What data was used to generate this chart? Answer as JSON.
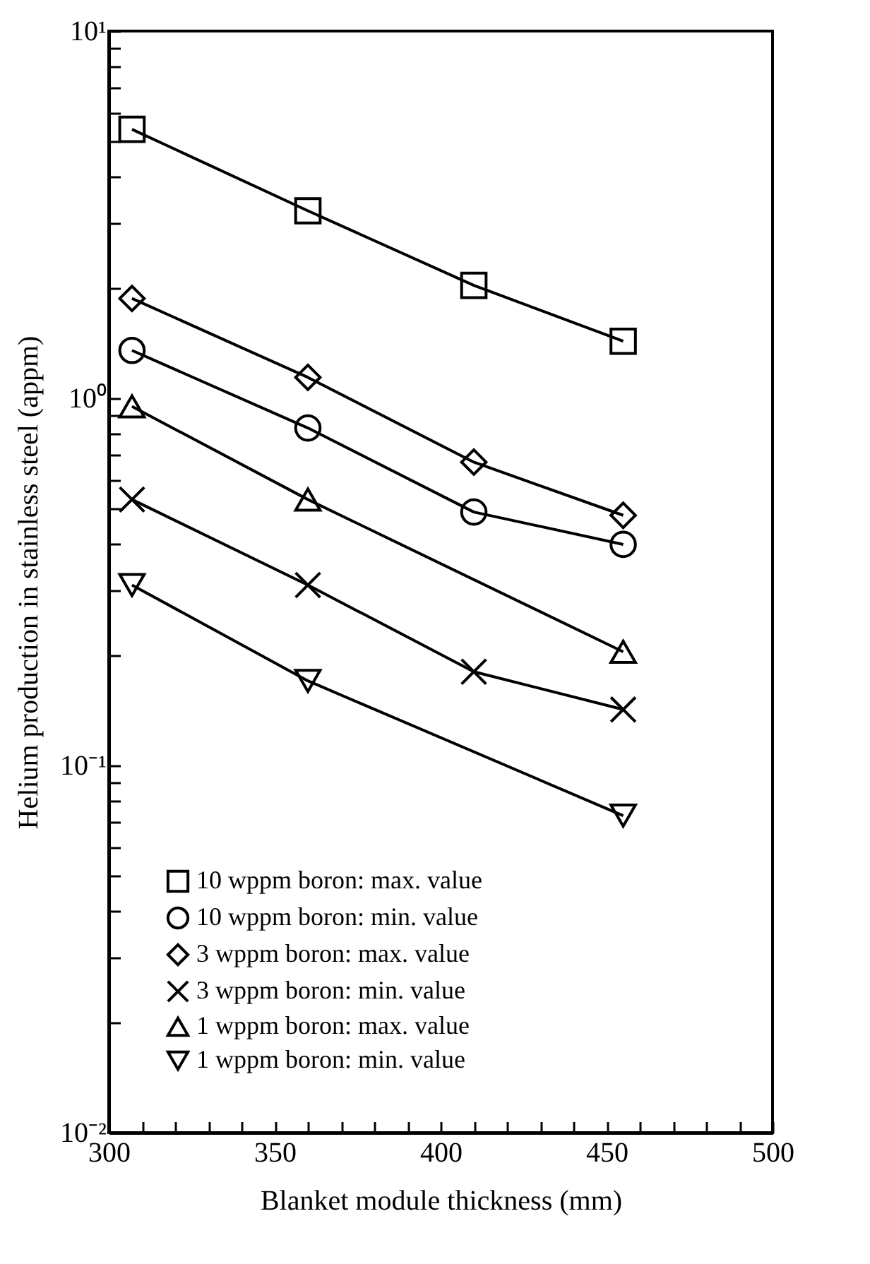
{
  "chart_data": {
    "type": "line",
    "xlabel": "Blanket module thickness (mm)",
    "ylabel": "Helium production in stainless steel (appm)",
    "x": [
      307,
      360,
      410,
      455
    ],
    "series": [
      {
        "name": "10 wppm boron: max. value",
        "color": "#000000",
        "marker": "square",
        "values": [
          5.4,
          3.24,
          2.03,
          1.43
        ]
      },
      {
        "name": "10 wppm boron: min. value",
        "color": "#000000",
        "marker": "circle",
        "values": [
          1.35,
          0.83,
          0.49,
          0.4
        ]
      },
      {
        "name": "3 wppm boron: max. value",
        "color": "#000000",
        "marker": "diamond",
        "values": [
          1.87,
          1.14,
          0.67,
          0.48
        ]
      },
      {
        "name": "3 wppm boron: min. value",
        "color": "#000000",
        "marker": "cross",
        "values": [
          0.53,
          0.31,
          0.18,
          0.142
        ]
      },
      {
        "name": "1 wppm boron: max. value",
        "color": "#000000",
        "marker": "triangle",
        "values": [
          0.95,
          0.53,
          null,
          0.204
        ]
      },
      {
        "name": "1 wppm boron: min. value",
        "color": "#000000",
        "marker": "triangle-down",
        "values": [
          0.31,
          0.17,
          null,
          0.073
        ]
      }
    ],
    "log": "y",
    "xlim": [
      300,
      500
    ],
    "ylim": [
      0.01,
      10
    ],
    "xticks": [
      300,
      {
        "value": 310,
        "label": null
      },
      {
        "value": 320,
        "label": null
      },
      {
        "value": 330,
        "label": null
      },
      {
        "value": 340,
        "label": null
      },
      350,
      {
        "value": 360,
        "label": null
      },
      {
        "value": 370,
        "label": null
      },
      {
        "value": 380,
        "label": null
      },
      {
        "value": 390,
        "label": null
      },
      400,
      {
        "value": 410,
        "label": null
      },
      {
        "value": 420,
        "label": null
      },
      {
        "value": 430,
        "label": null
      },
      {
        "value": 440,
        "label": null
      },
      450,
      {
        "value": 460,
        "label": null
      },
      {
        "value": 470,
        "label": null
      },
      {
        "value": 480,
        "label": null
      },
      {
        "value": 490,
        "label": null
      },
      500
    ],
    "yticks": [
      {
        "value": 0.01,
        "label": "10⁻²"
      },
      {
        "value": 0.02,
        "label": null
      },
      {
        "value": 0.03,
        "label": null
      },
      {
        "value": 0.04,
        "label": null
      },
      {
        "value": 0.05,
        "label": null
      },
      {
        "value": 0.06,
        "label": null
      },
      {
        "value": 0.07,
        "label": null
      },
      {
        "value": 0.08,
        "label": null
      },
      {
        "value": 0.09,
        "label": null
      },
      {
        "value": 0.1,
        "label": "10⁻¹"
      },
      {
        "value": 0.2,
        "label": null
      },
      {
        "value": 0.3,
        "label": null
      },
      {
        "value": 0.4,
        "label": null
      },
      {
        "value": 0.5,
        "label": null
      },
      {
        "value": 0.6,
        "label": null
      },
      {
        "value": 0.7,
        "label": null
      },
      {
        "value": 0.8,
        "label": null
      },
      {
        "value": 0.9,
        "label": null
      },
      {
        "value": 1,
        "label": "10⁰"
      },
      {
        "value": 2,
        "label": null
      },
      {
        "value": 3,
        "label": null
      },
      {
        "value": 4,
        "label": null
      },
      {
        "value": 5,
        "label": null
      },
      {
        "value": 6,
        "label": null
      },
      {
        "value": 7,
        "label": null
      },
      {
        "value": 8,
        "label": null
      },
      {
        "value": 9,
        "label": null
      },
      {
        "value": 10,
        "label": "10¹"
      }
    ],
    "legend": "bottom left",
    "grid": false
  }
}
